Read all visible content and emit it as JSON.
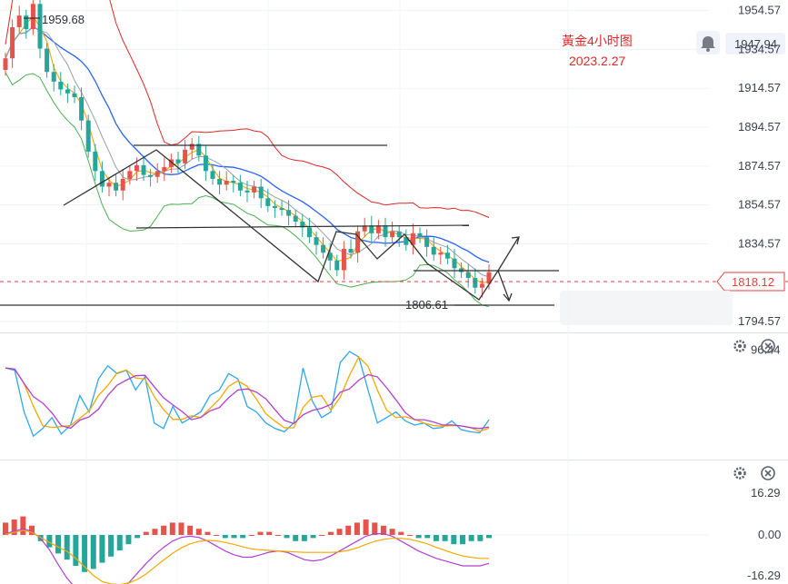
{
  "header": {
    "title": "黃金4小时图",
    "date": "2023.2.27",
    "current_price": "1947.94",
    "bell_icon": "bell-icon"
  },
  "colors": {
    "up": "#e5534b",
    "down": "#26a69a",
    "upper_band": "#e02626",
    "lower_band": "#4caf50",
    "mid_line": "#2962ff",
    "fast_ma": "#f2a900",
    "slow_ma": "#9c27b0",
    "osc_k": "#2ea6f0",
    "osc_d": "#f2a900",
    "osc_j": "#b040d0",
    "annotation": "#333333",
    "price_tag": "#e0433f"
  },
  "chart_data": [
    {
      "type": "candlestick",
      "panel": "main",
      "y_ticks": [
        "1954.57",
        "1934.57",
        "1914.57",
        "1894.57",
        "1874.57",
        "1854.57",
        "1834.57",
        "1814.57",
        "1794.57"
      ],
      "ylim": [
        1789,
        1960
      ],
      "last_price": "1818.12",
      "annotations": {
        "high_label": "1959.68",
        "low_label": "1806.61"
      },
      "series": [
        {
          "name": "",
          "values": [
            1930,
            1946,
            1952,
            1945,
            1958,
            1935,
            1923,
            1918,
            1914,
            1912,
            1910,
            1898,
            1882,
            1872,
            1864,
            1866,
            1862,
            1868,
            1872,
            1875,
            1870,
            1869,
            1872,
            1874,
            1878,
            1876,
            1883,
            1886,
            1880,
            1872,
            1868,
            1865,
            1867,
            1866,
            1862,
            1861,
            1864,
            1858,
            1854,
            1853,
            1852,
            1849,
            1846,
            1843,
            1838,
            1834,
            1830,
            1826,
            1821,
            1832,
            1830,
            1841,
            1844,
            1840,
            1844,
            1838,
            1841,
            1838,
            1834,
            1840,
            1838,
            1833,
            1829,
            1830,
            1827,
            1822,
            1820,
            1817,
            1812,
            1814,
            1820
          ]
        }
      ]
    },
    {
      "type": "line",
      "panel": "oscillator",
      "y_ticks": [
        "96.44"
      ],
      "series": [
        {
          "name": "",
          "values": [
            80,
            78,
            40,
            18,
            25,
            35,
            20,
            28,
            55,
            40,
            70,
            82,
            75,
            78,
            60,
            72,
            30,
            25,
            45,
            30,
            35,
            40,
            55,
            60,
            75,
            70,
            45,
            40,
            30,
            25,
            22,
            30,
            80,
            50,
            35,
            40,
            85,
            95,
            90,
            60,
            30,
            35,
            40,
            32,
            28,
            30,
            25,
            26,
            32,
            24,
            22,
            21,
            33
          ]
        }
      ]
    },
    {
      "type": "bar",
      "panel": "macd",
      "y_ticks": [
        "16.29",
        "0.00",
        "-16.29"
      ],
      "series": [
        {
          "name": "",
          "values": [
            4,
            5,
            6,
            3,
            -2,
            -4,
            -6,
            -8,
            -10,
            -12,
            -11,
            -9,
            -7,
            -5,
            -3,
            -1,
            1,
            2,
            3,
            4,
            4,
            3,
            2,
            1,
            0,
            -1,
            -1,
            -1,
            0,
            1,
            1,
            0,
            -1,
            -2,
            -2,
            -1,
            0,
            1,
            2,
            3,
            4,
            5,
            4,
            3,
            2,
            1,
            0,
            -1,
            -1,
            -2,
            -2,
            -3,
            -3,
            -2,
            -2,
            -1
          ]
        }
      ]
    }
  ]
}
